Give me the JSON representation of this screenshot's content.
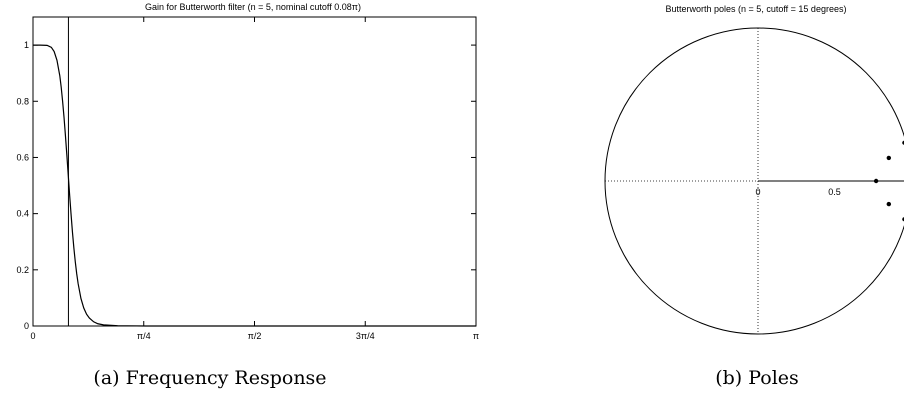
{
  "chart_data": [
    {
      "type": "line",
      "title": "Gain for Butterworth filter (n = 5, nominal cutoff 0.08π)",
      "caption": "(a) Frequency Response",
      "xlabel": "",
      "ylabel": "",
      "xlim": [
        0,
        3.14159265
      ],
      "ylim": [
        0,
        1.1
      ],
      "x_ticks": [
        {
          "value": 0,
          "label": "0"
        },
        {
          "value": 0.78539816,
          "label": "π/4"
        },
        {
          "value": 1.57079633,
          "label": "π/2"
        },
        {
          "value": 2.35619449,
          "label": "3π/4"
        },
        {
          "value": 3.14159265,
          "label": "π"
        }
      ],
      "y_ticks": [
        {
          "value": 0,
          "label": "0"
        },
        {
          "value": 0.2,
          "label": "0.2"
        },
        {
          "value": 0.4,
          "label": "0.4"
        },
        {
          "value": 0.6,
          "label": "0.6"
        },
        {
          "value": 0.8,
          "label": "0.8"
        },
        {
          "value": 1,
          "label": "1"
        }
      ],
      "cutoff_line_x": 0.2513,
      "grid": false,
      "series": [
        {
          "x": [
            0,
            0.05,
            0.1,
            0.13,
            0.15,
            0.17,
            0.19,
            0.2,
            0.21,
            0.22,
            0.23,
            0.24,
            0.25,
            0.26,
            0.27,
            0.28,
            0.29,
            0.3,
            0.31,
            0.32,
            0.34,
            0.36,
            0.38,
            0.4,
            0.43,
            0.46,
            0.5,
            0.6,
            0.8,
            1.2,
            2.0,
            3.14159265
          ],
          "y": [
            1.0,
            1.0,
            0.999,
            0.992,
            0.977,
            0.946,
            0.891,
            0.85,
            0.8,
            0.743,
            0.678,
            0.609,
            0.537,
            0.465,
            0.397,
            0.333,
            0.277,
            0.228,
            0.186,
            0.151,
            0.098,
            0.064,
            0.042,
            0.028,
            0.015,
            0.008,
            0.004,
            0.001,
            0.0,
            0.0,
            0.0,
            0.0
          ]
        }
      ]
    },
    {
      "type": "scatter",
      "title": "Butterworth poles (n = 5, cutoff = 15 degrees)",
      "caption": "(b) Poles",
      "xlim": [
        -1,
        1
      ],
      "ylim": [
        -1,
        1
      ],
      "x_ticks": [
        {
          "value": 0,
          "label": "0"
        },
        {
          "value": 0.5,
          "label": "0.5"
        }
      ],
      "unit_circle": true,
      "grid": false,
      "points": [
        {
          "x": 0.957,
          "y": 0.25
        },
        {
          "x": 0.855,
          "y": 0.151
        },
        {
          "x": 0.772,
          "y": 0.0
        },
        {
          "x": 0.855,
          "y": -0.151
        },
        {
          "x": 0.957,
          "y": -0.25
        }
      ]
    }
  ]
}
